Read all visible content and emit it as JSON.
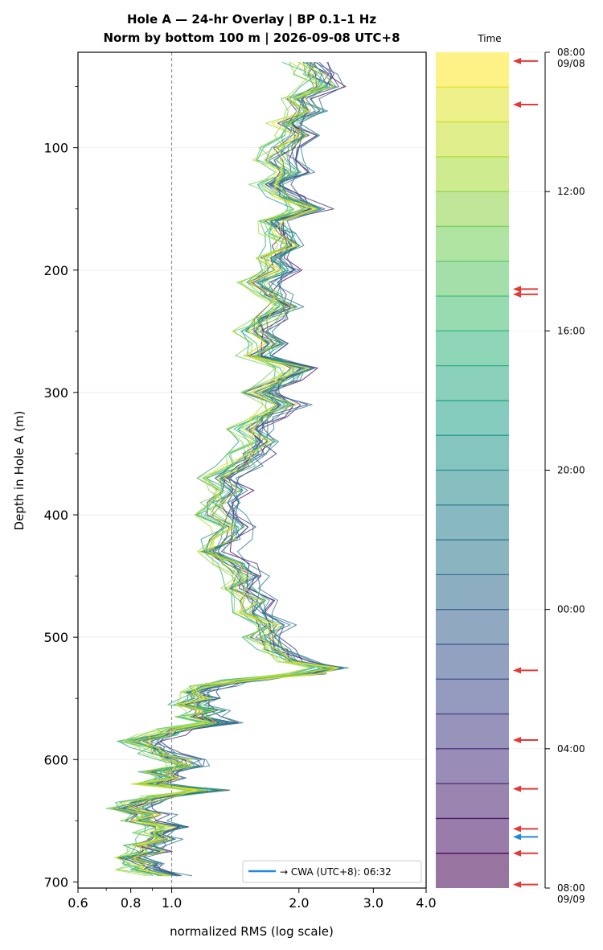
{
  "chart_data": {
    "type": "line",
    "title_line1": "Hole A — 24-hr Overlay  |  BP 0.1–1 Hz",
    "title_line2": "Norm by bottom 100 m  |  2026-09-08 UTC+8",
    "xlabel": "normalized RMS  (log scale)",
    "ylabel": "Depth in Hole A (m)",
    "x_scale": "log",
    "xlim": [
      0.6,
      4.0
    ],
    "ylim": [
      705,
      22
    ],
    "x_ticks": [
      0.6,
      0.8,
      1.0,
      2.0,
      3.0,
      4.0
    ],
    "x_tick_labels": [
      "0.6",
      "0.8",
      "1.0",
      "2.0",
      "3.0",
      "4.0"
    ],
    "y_ticks": [
      100,
      200,
      300,
      400,
      500,
      600,
      700
    ],
    "y_tick_labels": [
      "100",
      "200",
      "300",
      "400",
      "500",
      "600",
      "700"
    ],
    "reference_line_x": 1.0,
    "grid": "horizontal",
    "legend_placement": "lower-right",
    "legend_label": "→ CWA (UTC+8): 06:32",
    "legend_color": "#1e88e5",
    "profile_count": 24,
    "series_colormap": "viridis",
    "mean_profile": [
      [
        30,
        2.1
      ],
      [
        40,
        2.2
      ],
      [
        50,
        2.3
      ],
      [
        60,
        2.0
      ],
      [
        70,
        2.1
      ],
      [
        80,
        1.9
      ],
      [
        90,
        2.0
      ],
      [
        100,
        1.85
      ],
      [
        110,
        1.8
      ],
      [
        120,
        1.95
      ],
      [
        130,
        1.75
      ],
      [
        140,
        1.9
      ],
      [
        150,
        2.15
      ],
      [
        160,
        1.75
      ],
      [
        170,
        1.85
      ],
      [
        180,
        1.9
      ],
      [
        190,
        1.7
      ],
      [
        200,
        1.85
      ],
      [
        210,
        1.65
      ],
      [
        220,
        1.75
      ],
      [
        230,
        1.85
      ],
      [
        240,
        1.7
      ],
      [
        250,
        1.6
      ],
      [
        260,
        1.75
      ],
      [
        270,
        1.6
      ],
      [
        280,
        2.0
      ],
      [
        290,
        1.85
      ],
      [
        300,
        1.65
      ],
      [
        310,
        1.9
      ],
      [
        320,
        1.7
      ],
      [
        330,
        1.55
      ],
      [
        340,
        1.65
      ],
      [
        350,
        1.55
      ],
      [
        360,
        1.45
      ],
      [
        370,
        1.3
      ],
      [
        380,
        1.4
      ],
      [
        390,
        1.35
      ],
      [
        400,
        1.3
      ],
      [
        410,
        1.4
      ],
      [
        420,
        1.35
      ],
      [
        430,
        1.25
      ],
      [
        440,
        1.4
      ],
      [
        450,
        1.5
      ],
      [
        460,
        1.45
      ],
      [
        470,
        1.6
      ],
      [
        480,
        1.55
      ],
      [
        490,
        1.75
      ],
      [
        500,
        1.65
      ],
      [
        510,
        1.8
      ],
      [
        520,
        2.0
      ],
      [
        525,
        2.4
      ],
      [
        530,
        2.1
      ],
      [
        535,
        1.5
      ],
      [
        540,
        1.25
      ],
      [
        545,
        1.15
      ],
      [
        550,
        1.2
      ],
      [
        555,
        1.1
      ],
      [
        560,
        1.25
      ],
      [
        565,
        1.15
      ],
      [
        570,
        1.3
      ],
      [
        575,
        1.05
      ],
      [
        580,
        0.95
      ],
      [
        585,
        0.85
      ],
      [
        590,
        0.9
      ],
      [
        595,
        0.95
      ],
      [
        600,
        1.05
      ],
      [
        605,
        1.1
      ],
      [
        610,
        0.95
      ],
      [
        615,
        1.0
      ],
      [
        620,
        0.9
      ],
      [
        625,
        1.25
      ],
      [
        630,
        0.95
      ],
      [
        635,
        0.85
      ],
      [
        640,
        0.8
      ],
      [
        645,
        0.9
      ],
      [
        650,
        0.85
      ],
      [
        655,
        1.0
      ],
      [
        660,
        0.9
      ],
      [
        665,
        0.95
      ],
      [
        670,
        0.85
      ],
      [
        675,
        0.9
      ],
      [
        680,
        0.8
      ],
      [
        685,
        0.88
      ],
      [
        690,
        0.85
      ],
      [
        695,
        1.0
      ]
    ],
    "colorbar": {
      "label": "Time",
      "ticks": [
        "08:00",
        "12:00",
        "16:00",
        "20:00",
        "00:00",
        "04:00",
        "08:00"
      ],
      "tick_dates": [
        "09/08",
        "",
        "",
        "",
        "",
        "",
        "09/09"
      ],
      "tick_positions_hours": [
        0,
        4,
        8,
        12,
        16,
        20,
        24
      ],
      "bin_count": 24,
      "event_arrows_hours": [
        0.25,
        1.5,
        6.8,
        6.95,
        17.75,
        19.75,
        21.15,
        22.3,
        23.0,
        23.9
      ],
      "event_arrow_color": "#e53935",
      "cwa_arrow_hours": 22.53,
      "cwa_arrow_color": "#1e88e5"
    }
  }
}
